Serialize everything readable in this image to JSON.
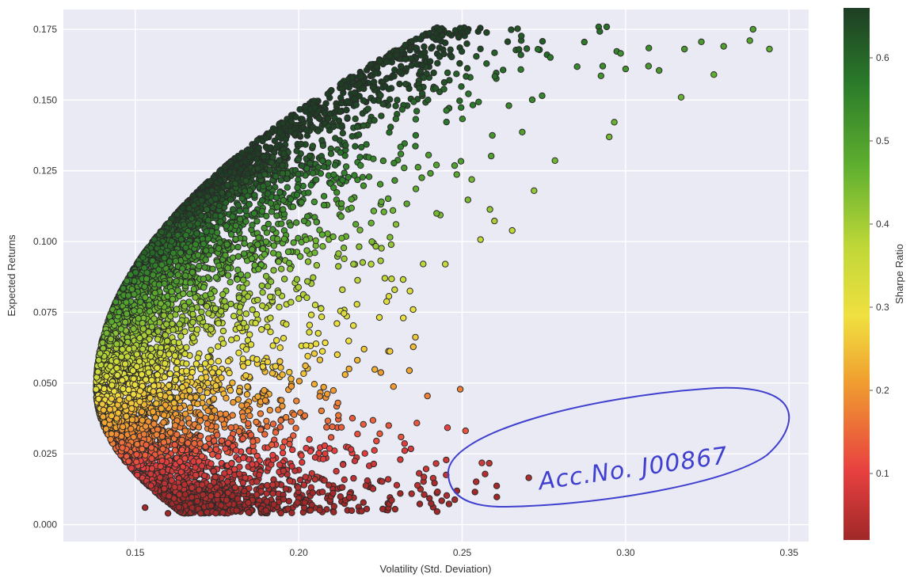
{
  "chart_data": {
    "type": "scatter",
    "title": "",
    "xlabel": "Volatility (Std. Deviation)",
    "ylabel": "Expected Returns",
    "xlim": [
      0.128,
      0.356
    ],
    "ylim": [
      -0.006,
      0.182
    ],
    "x_ticks": [
      0.15,
      0.2,
      0.25,
      0.3,
      0.35
    ],
    "x_tick_labels": [
      "0.15",
      "0.20",
      "0.25",
      "0.30",
      "0.35"
    ],
    "y_ticks": [
      0.0,
      0.025,
      0.05,
      0.075,
      0.1,
      0.125,
      0.15,
      0.175
    ],
    "y_tick_labels": [
      "0.000",
      "0.025",
      "0.050",
      "0.075",
      "0.100",
      "0.125",
      "0.150",
      "0.175"
    ],
    "grid": true,
    "point_count": 6000,
    "point_distribution": "random portfolio cloud bounded on the left and top by an efficient-frontier curve; densest near (0.14, 0.05), thinning toward (0.34, 0.17); lower-right region sparse",
    "colorbar": {
      "label": "Sharpe Ratio",
      "range": [
        0.02,
        0.66
      ],
      "ticks": [
        0.1,
        0.2,
        0.3,
        0.4,
        0.5,
        0.6
      ],
      "tick_labels": [
        "0.1",
        "0.2",
        "0.3",
        "0.4",
        "0.5",
        "0.6"
      ],
      "colormap": [
        "#a02828",
        "#e84040",
        "#f0a030",
        "#f0e040",
        "#c0d838",
        "#60b030",
        "#2a7a2a",
        "#1e3e24"
      ]
    },
    "sample_points": [
      {
        "x": 0.339,
        "y": 0.175
      },
      {
        "x": 0.344,
        "y": 0.168
      },
      {
        "x": 0.338,
        "y": 0.171
      },
      {
        "x": 0.33,
        "y": 0.169
      },
      {
        "x": 0.318,
        "y": 0.168
      },
      {
        "x": 0.327,
        "y": 0.159
      },
      {
        "x": 0.317,
        "y": 0.151
      },
      {
        "x": 0.307,
        "y": 0.162
      },
      {
        "x": 0.3,
        "y": 0.161
      },
      {
        "x": 0.293,
        "y": 0.162
      },
      {
        "x": 0.295,
        "y": 0.137
      },
      {
        "x": 0.272,
        "y": 0.118
      },
      {
        "x": 0.232,
        "y": 0.073
      },
      {
        "x": 0.235,
        "y": 0.076
      },
      {
        "x": 0.22,
        "y": 0.062
      },
      {
        "x": 0.218,
        "y": 0.032
      },
      {
        "x": 0.212,
        "y": 0.043
      },
      {
        "x": 0.205,
        "y": 0.016
      },
      {
        "x": 0.201,
        "y": 0.022
      },
      {
        "x": 0.19,
        "y": 0.005
      },
      {
        "x": 0.181,
        "y": 0.005
      },
      {
        "x": 0.17,
        "y": 0.004
      },
      {
        "x": 0.16,
        "y": 0.004
      },
      {
        "x": 0.153,
        "y": 0.006
      }
    ],
    "annotation": {
      "text": "Acc.No. J00867",
      "style": "handwritten",
      "color": "#3f3fd0"
    }
  },
  "colors": {
    "plot_background": "#eaeaf4",
    "grid": "#ffffff",
    "marker_edge": "#2a2a2a",
    "page_background": "#ffffff"
  }
}
